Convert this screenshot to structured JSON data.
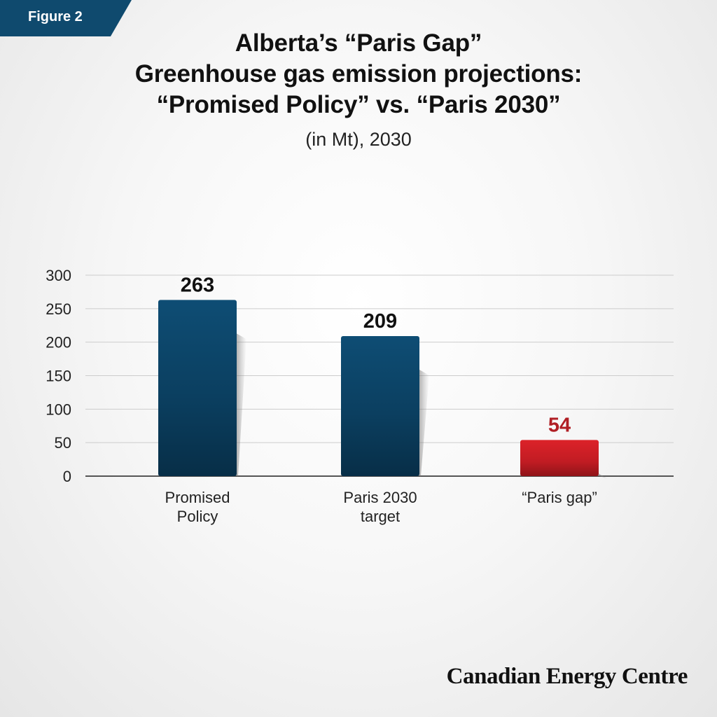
{
  "figure_tag": "Figure 2",
  "title_lines": [
    "Alberta’s “Paris Gap”",
    "Greenhouse gas emission projections:",
    "“Promised Policy” vs. “Paris 2030”"
  ],
  "subtitle": "(in Mt), 2030",
  "source": "Canadian Energy Centre",
  "colors": {
    "primary_bar": "#0d4a70",
    "gap_bar": "#d32027",
    "gap_label": "#b01e24",
    "tag": "#0f4a6e"
  },
  "chart_data": {
    "type": "bar",
    "categories": [
      [
        "Promised",
        "Policy"
      ],
      [
        "Paris 2030",
        "target"
      ],
      [
        "“Paris gap”"
      ]
    ],
    "values": [
      263,
      209,
      54
    ],
    "value_labels": [
      "263",
      "209",
      "54"
    ],
    "bar_colors": [
      "primary_bar",
      "primary_bar",
      "gap_bar"
    ],
    "label_colors": [
      "#111111",
      "#111111",
      "gap_label"
    ],
    "ylim": [
      0,
      300
    ],
    "yticks": [
      0,
      50,
      100,
      150,
      200,
      250,
      300
    ],
    "grid": true,
    "legend": "none"
  }
}
